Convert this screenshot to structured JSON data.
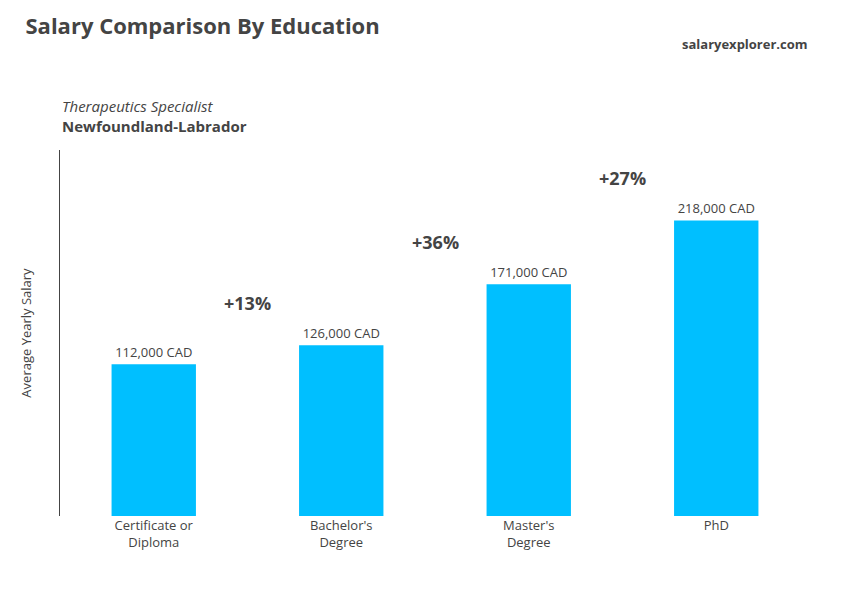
{
  "chart_data": {
    "type": "bar",
    "title": "Salary Comparison By Education",
    "subtitle": [
      "Therapeutics Specialist",
      "Newfoundland-Labrador"
    ],
    "watermark": "salaryexplorer.com",
    "ylabel": "Average Yearly Salary",
    "categories": [
      "Certificate or\nDiploma",
      "Bachelor's\nDegree",
      "Master's\nDegree",
      "PhD"
    ],
    "values": [
      112000,
      126000,
      171000,
      218000
    ],
    "value_labels": [
      "112,000 CAD",
      "126,000 CAD",
      "171,000 CAD",
      "218,000 CAD"
    ],
    "data_labels": true,
    "annotations": [
      "+13%",
      "+36%",
      "+27%"
    ],
    "color": "#00BFFF",
    "ylim": [
      0,
      270000
    ],
    "tick_labels": "x",
    "grid": false
  }
}
